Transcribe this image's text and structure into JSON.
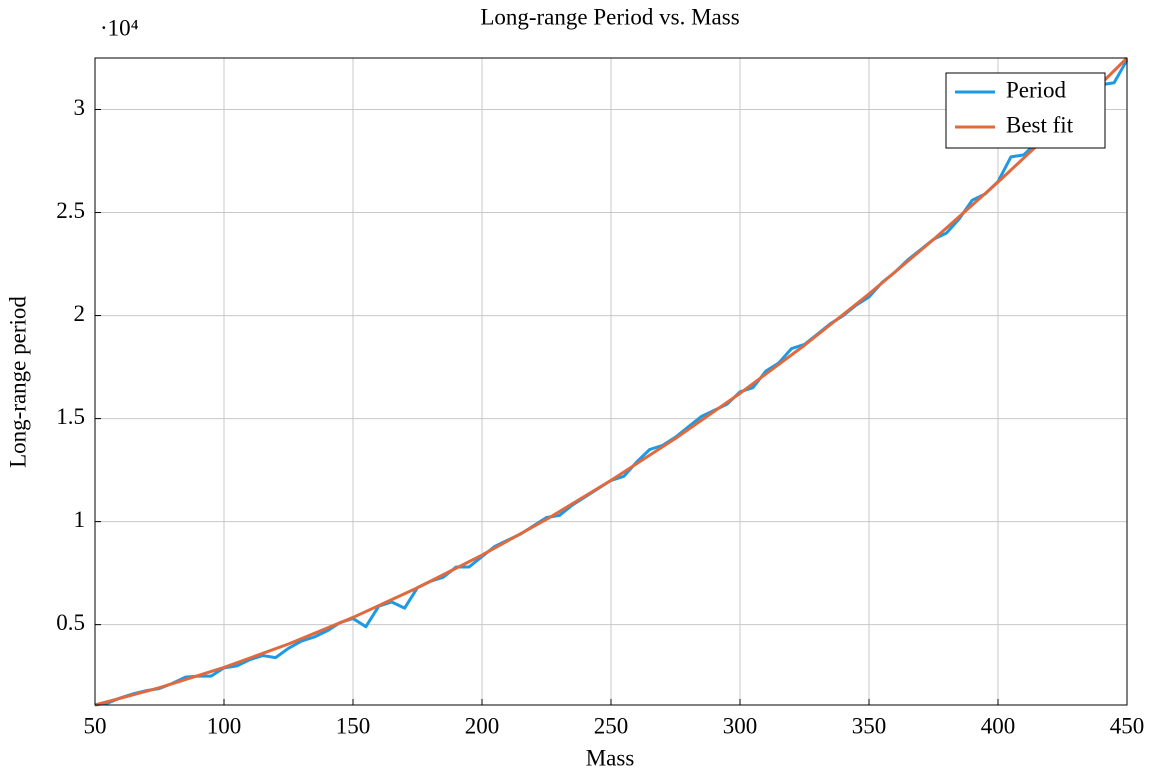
{
  "chart_data": {
    "type": "line",
    "title": "Long-range Period vs. Mass",
    "x_label": "Mass",
    "y_label": "Long-range period",
    "y_scale_label": "·10⁴",
    "xlim": [
      50,
      450
    ],
    "xticks": [
      50,
      100,
      150,
      200,
      250,
      300,
      350,
      400,
      450
    ],
    "ylim": [
      1100,
      32500
    ],
    "yticks": [
      {
        "value": 5000,
        "label": "0.5"
      },
      {
        "value": 10000,
        "label": "1"
      },
      {
        "value": 15000,
        "label": "1.5"
      },
      {
        "value": 20000,
        "label": "2"
      },
      {
        "value": 25000,
        "label": "2.5"
      },
      {
        "value": 30000,
        "label": "3"
      }
    ],
    "grid": true,
    "legend": "top-right",
    "series": [
      {
        "name": "Period",
        "color": "#1c9ae6",
        "x": [
          50,
          55,
          60,
          65,
          70,
          75,
          80,
          85,
          90,
          95,
          100,
          105,
          110,
          115,
          120,
          125,
          130,
          135,
          140,
          145,
          150,
          155,
          160,
          165,
          170,
          175,
          180,
          185,
          190,
          195,
          200,
          205,
          210,
          215,
          220,
          225,
          230,
          235,
          240,
          245,
          250,
          255,
          260,
          265,
          270,
          275,
          280,
          285,
          290,
          295,
          300,
          305,
          310,
          315,
          320,
          325,
          330,
          335,
          340,
          345,
          350,
          355,
          360,
          365,
          370,
          375,
          380,
          385,
          390,
          395,
          400,
          405,
          410,
          415,
          420,
          425,
          430,
          435,
          440,
          445,
          450
        ],
        "values": [
          1100,
          1200,
          1450,
          1650,
          1800,
          1900,
          2150,
          2450,
          2500,
          2500,
          2900,
          3000,
          3300,
          3500,
          3400,
          3850,
          4200,
          4400,
          4700,
          5100,
          5300,
          4900,
          5900,
          6100,
          5800,
          6800,
          7100,
          7300,
          7800,
          7800,
          8300,
          8800,
          9100,
          9400,
          9800,
          10200,
          10300,
          10800,
          11200,
          11600,
          12000,
          12200,
          12900,
          13500,
          13700,
          14100,
          14600,
          15100,
          15400,
          15700,
          16300,
          16500,
          17300,
          17700,
          18400,
          18600,
          19100,
          19600,
          20000,
          20500,
          20900,
          21600,
          22100,
          22700,
          23200,
          23700,
          24000,
          24700,
          25600,
          25900,
          26500,
          27700,
          27800,
          28400,
          28900,
          29500,
          30000,
          30700,
          31200,
          31300,
          32400
        ]
      },
      {
        "name": "Best fit",
        "color": "#e0693e",
        "x": [
          50,
          75,
          100,
          125,
          150,
          175,
          200,
          225,
          250,
          275,
          300,
          325,
          350,
          375,
          400,
          425,
          450
        ],
        "values": [
          1100,
          1940,
          2925,
          4060,
          5350,
          6790,
          8375,
          10110,
          12000,
          14040,
          16225,
          18560,
          21050,
          23690,
          26475,
          29410,
          32500
        ]
      }
    ]
  }
}
